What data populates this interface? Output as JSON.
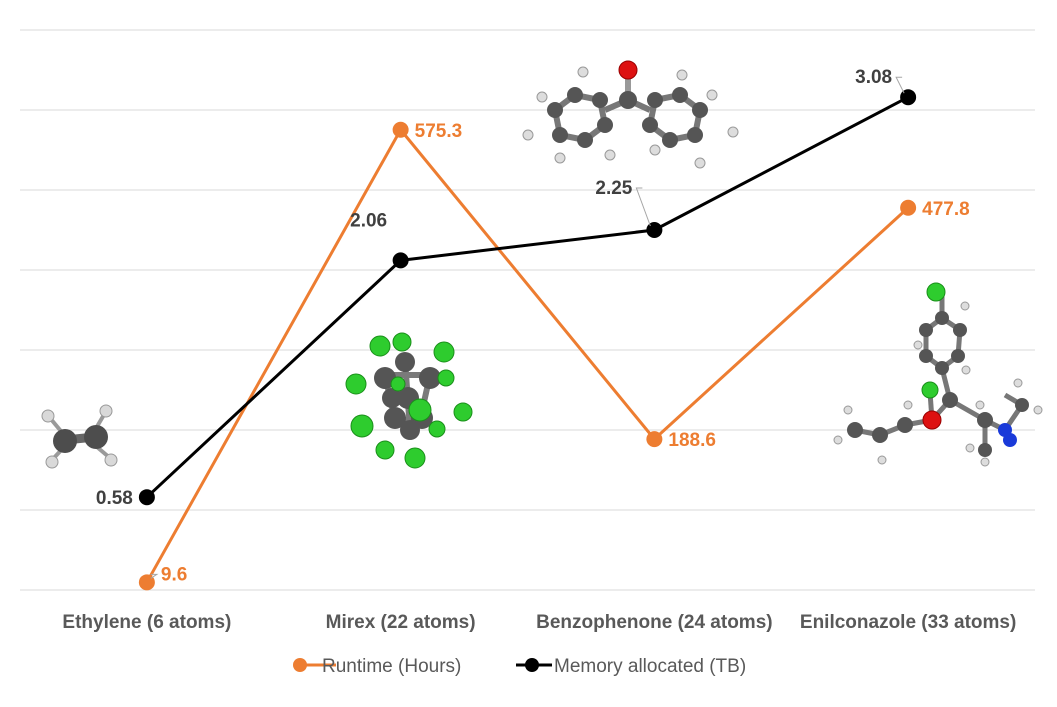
{
  "chart_data": {
    "type": "line",
    "title": "",
    "xlabel": "",
    "ylabel": "",
    "categories": [
      "Ethylene (6 atoms)",
      "Mirex (22 atoms)",
      "Benzophenone (24 atoms)",
      "Enilconazole (33 atoms)"
    ],
    "series": [
      {
        "name": "Runtime (Hours)",
        "values": [
          9.6,
          575.3,
          188.6,
          477.8
        ],
        "labels": [
          "9.6",
          "575.3",
          "188.6",
          "477.8"
        ],
        "color": "#ED7D31",
        "axis": "primary",
        "ylim": [
          0,
          700
        ]
      },
      {
        "name": "Memory allocated (TB)",
        "values": [
          0.58,
          2.06,
          2.25,
          3.08
        ],
        "labels": [
          "0.58",
          "2.06",
          "2.25",
          "3.08"
        ],
        "color": "#000000",
        "axis": "secondary",
        "ylim": [
          0,
          3.5
        ]
      }
    ],
    "grid": true,
    "gridline_count": 7,
    "legend_position": "bottom",
    "axis_labels_visible": false,
    "images": [
      "ethylene-molecule",
      "mirex-molecule",
      "benzophenone-molecule",
      "enilconazole-molecule"
    ]
  },
  "legend": [
    {
      "label": "Runtime (Hours)",
      "color": "#ED7D31"
    },
    {
      "label": "Memory allocated (TB)",
      "color": "#000000"
    }
  ]
}
